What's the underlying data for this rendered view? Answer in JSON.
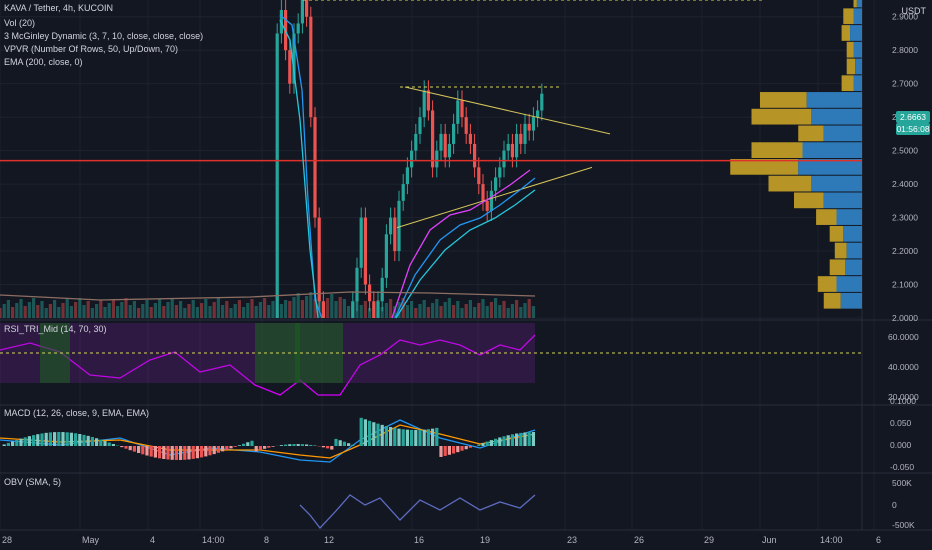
{
  "header": {
    "symbol_line": "KAVA / Tether, 4h, KUCOIN",
    "indicators": [
      "Vol (20)",
      "3 McGinley Dynamic (3, 7, 10, close, close, close)",
      "VPVR (Number Of Rows, 50, Up/Down, 70)",
      "EMA (200, close, 0)"
    ]
  },
  "price_axis": {
    "currency": "USDT",
    "ticks": [
      "2.9000",
      "2.8000",
      "2.7000",
      "2.6000",
      "2.5000",
      "2.4000",
      "2.3000",
      "2.2000",
      "2.1000",
      "2.0000"
    ],
    "last_price": "2.6663",
    "countdown": "01:56:08"
  },
  "panes": {
    "rsi": {
      "label": "RSI_TRI_Mid (14, 70, 30)",
      "ticks": [
        "60.0000",
        "40.0000",
        "20.0000"
      ]
    },
    "macd": {
      "label": "MACD (12, 26, close, 9, EMA, EMA)",
      "ticks": [
        "0.1000",
        "0.050",
        "0.000",
        "-0.050"
      ]
    },
    "obv": {
      "label": "OBV (SMA, 5)",
      "ticks": [
        "500K",
        "0",
        "-500K"
      ]
    }
  },
  "time_axis": {
    "labels": [
      "28",
      "May",
      "4",
      "14:00",
      "8",
      "12",
      "16",
      "19",
      "23",
      "26",
      "29",
      "Jun",
      "14:00",
      "6"
    ]
  },
  "chart_data": {
    "type": "candlestick",
    "title": "KAVA / Tether, 4h, KUCOIN",
    "x_labels": [
      "28",
      "May",
      "4",
      "14:00",
      "8",
      "12",
      "16",
      "19",
      "23",
      "26",
      "29",
      "Jun",
      "14:00",
      "6"
    ],
    "ylim": [
      2.0,
      2.95
    ],
    "close_path": [
      2.0,
      2.0,
      2.0,
      2.0,
      2.0,
      2.0,
      2.0,
      2.0,
      2.0,
      2.0,
      2.0,
      2.0,
      2.0,
      2.0,
      2.0,
      2.0,
      2.0,
      2.0,
      2.0,
      2.0,
      2.0,
      2.0,
      2.0,
      2.0,
      2.0,
      2.0,
      2.0,
      2.0,
      2.0,
      2.0,
      2.0,
      2.0,
      2.0,
      2.0,
      2.0,
      2.0,
      2.0,
      2.0,
      2.0,
      2.0,
      2.0,
      2.0,
      2.0,
      2.0,
      2.0,
      2.0,
      2.0,
      2.0,
      2.0,
      2.0,
      2.0,
      2.0,
      2.0,
      2.0,
      2.0,
      2.0,
      2.0,
      2.0,
      2.0,
      2.0,
      2.0,
      2.0,
      2.0,
      2.0,
      2.0,
      2.0,
      2.85,
      2.92,
      2.8,
      2.7,
      2.85,
      2.88,
      2.95,
      2.9,
      2.6,
      2.3,
      2.05,
      2.0,
      2.0,
      2.0,
      2.0,
      2.0,
      2.0,
      2.0,
      2.05,
      2.15,
      2.3,
      2.1,
      2.05,
      2.0,
      2.05,
      2.12,
      2.25,
      2.3,
      2.2,
      2.35,
      2.4,
      2.45,
      2.5,
      2.55,
      2.6,
      2.68,
      2.62,
      2.45,
      2.5,
      2.55,
      2.48,
      2.52,
      2.58,
      2.65,
      2.6,
      2.55,
      2.52,
      2.45,
      2.4,
      2.35,
      2.32,
      2.38,
      2.42,
      2.45,
      2.5,
      2.52,
      2.48,
      2.55,
      2.52,
      2.58,
      2.56,
      2.6,
      2.62,
      2.67
    ],
    "annotations": {
      "resistance_dotted": 2.69,
      "top_dotted": 2.95,
      "red_horizontal": 2.47
    },
    "volume_profile": {
      "bins": [
        2.05,
        2.1,
        2.15,
        2.2,
        2.25,
        2.3,
        2.35,
        2.4,
        2.45,
        2.5,
        2.55,
        2.6,
        2.65,
        2.7,
        2.75,
        2.8,
        2.85,
        2.9,
        2.95
      ],
      "up": [
        25,
        30,
        20,
        18,
        22,
        30,
        45,
        60,
        75,
        70,
        45,
        60,
        65,
        10,
        8,
        10,
        14,
        10,
        6
      ],
      "down": [
        20,
        22,
        18,
        14,
        16,
        24,
        35,
        50,
        80,
        60,
        30,
        70,
        55,
        14,
        10,
        8,
        10,
        12,
        4
      ]
    }
  }
}
